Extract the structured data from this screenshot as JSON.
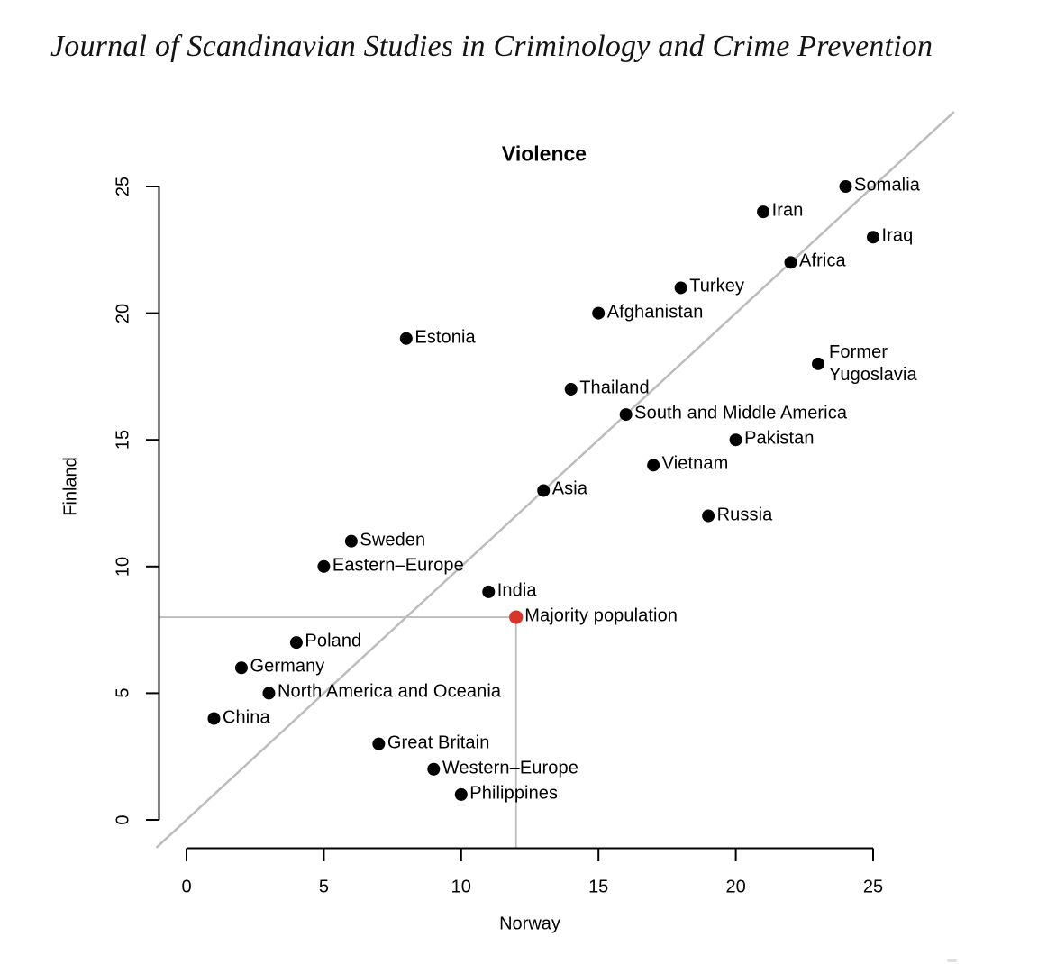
{
  "header": {
    "journal_title": "Journal of Scandinavian Studies in Criminology and Crime Prevention"
  },
  "chart_data": {
    "type": "scatter",
    "title": "Violence",
    "xlabel": "Norway",
    "ylabel": "Finland",
    "xlim": [
      0,
      25
    ],
    "ylim": [
      0,
      25
    ],
    "x_ticks": [
      0,
      5,
      10,
      15,
      20,
      25
    ],
    "y_ticks": [
      0,
      5,
      10,
      15,
      20,
      25
    ],
    "grid": false,
    "legend": false,
    "axis_color": "#000000",
    "text_color": "#000000",
    "default_point_color": "#000000",
    "highlight_color": "#d6372c",
    "line_color": "#bcbcbc",
    "identity_line": {
      "from": [
        -1.1,
        -1.1
      ],
      "to": [
        27.95,
        27.95
      ],
      "color": "#bcbcbc"
    },
    "reference_lines": [
      {
        "name": "majority-horizontal-line",
        "from": [
          -1.0,
          8
        ],
        "to": [
          12,
          8
        ],
        "color": "#bcbcbc"
      },
      {
        "name": "majority-vertical-line",
        "from": [
          12,
          8
        ],
        "to": [
          12,
          -1.12
        ],
        "color": "#bcbcbc"
      }
    ],
    "points": [
      {
        "label": "China",
        "x": 1,
        "y": 4
      },
      {
        "label": "Germany",
        "x": 2,
        "y": 6
      },
      {
        "label": "North America and Oceania",
        "x": 3,
        "y": 5
      },
      {
        "label": "Poland",
        "x": 4,
        "y": 7
      },
      {
        "label": "Eastern–Europe",
        "x": 5,
        "y": 10
      },
      {
        "label": "Sweden",
        "x": 6,
        "y": 11
      },
      {
        "label": "Great Britain",
        "x": 7,
        "y": 3
      },
      {
        "label": "Estonia",
        "x": 8,
        "y": 19
      },
      {
        "label": "Western–Europe",
        "x": 9,
        "y": 2
      },
      {
        "label": "Philippines",
        "x": 10,
        "y": 1
      },
      {
        "label": "India",
        "x": 11,
        "y": 9
      },
      {
        "label": "Majority population",
        "x": 12,
        "y": 8,
        "color": "#d6372c",
        "highlight": true
      },
      {
        "label": "Asia",
        "x": 13,
        "y": 13
      },
      {
        "label": "Thailand",
        "x": 14,
        "y": 17
      },
      {
        "label": "Afghanistan",
        "x": 15,
        "y": 20
      },
      {
        "label": "South and Middle America",
        "x": 16,
        "y": 16
      },
      {
        "label": "Vietnam",
        "x": 17,
        "y": 14
      },
      {
        "label": "Turkey",
        "x": 18,
        "y": 21
      },
      {
        "label": "Russia",
        "x": 19,
        "y": 12
      },
      {
        "label": "Pakistan",
        "x": 20,
        "y": 15
      },
      {
        "label": "Iran",
        "x": 21,
        "y": 24
      },
      {
        "label": "Africa",
        "x": 22,
        "y": 22
      },
      {
        "label": "Former Yugoslavia",
        "x": 23,
        "y": 18,
        "label_lines": [
          "Former",
          "Yugoslavia"
        ]
      },
      {
        "label": "Somalia",
        "x": 24,
        "y": 25
      },
      {
        "label": "Iraq",
        "x": 25,
        "y": 23
      }
    ]
  }
}
